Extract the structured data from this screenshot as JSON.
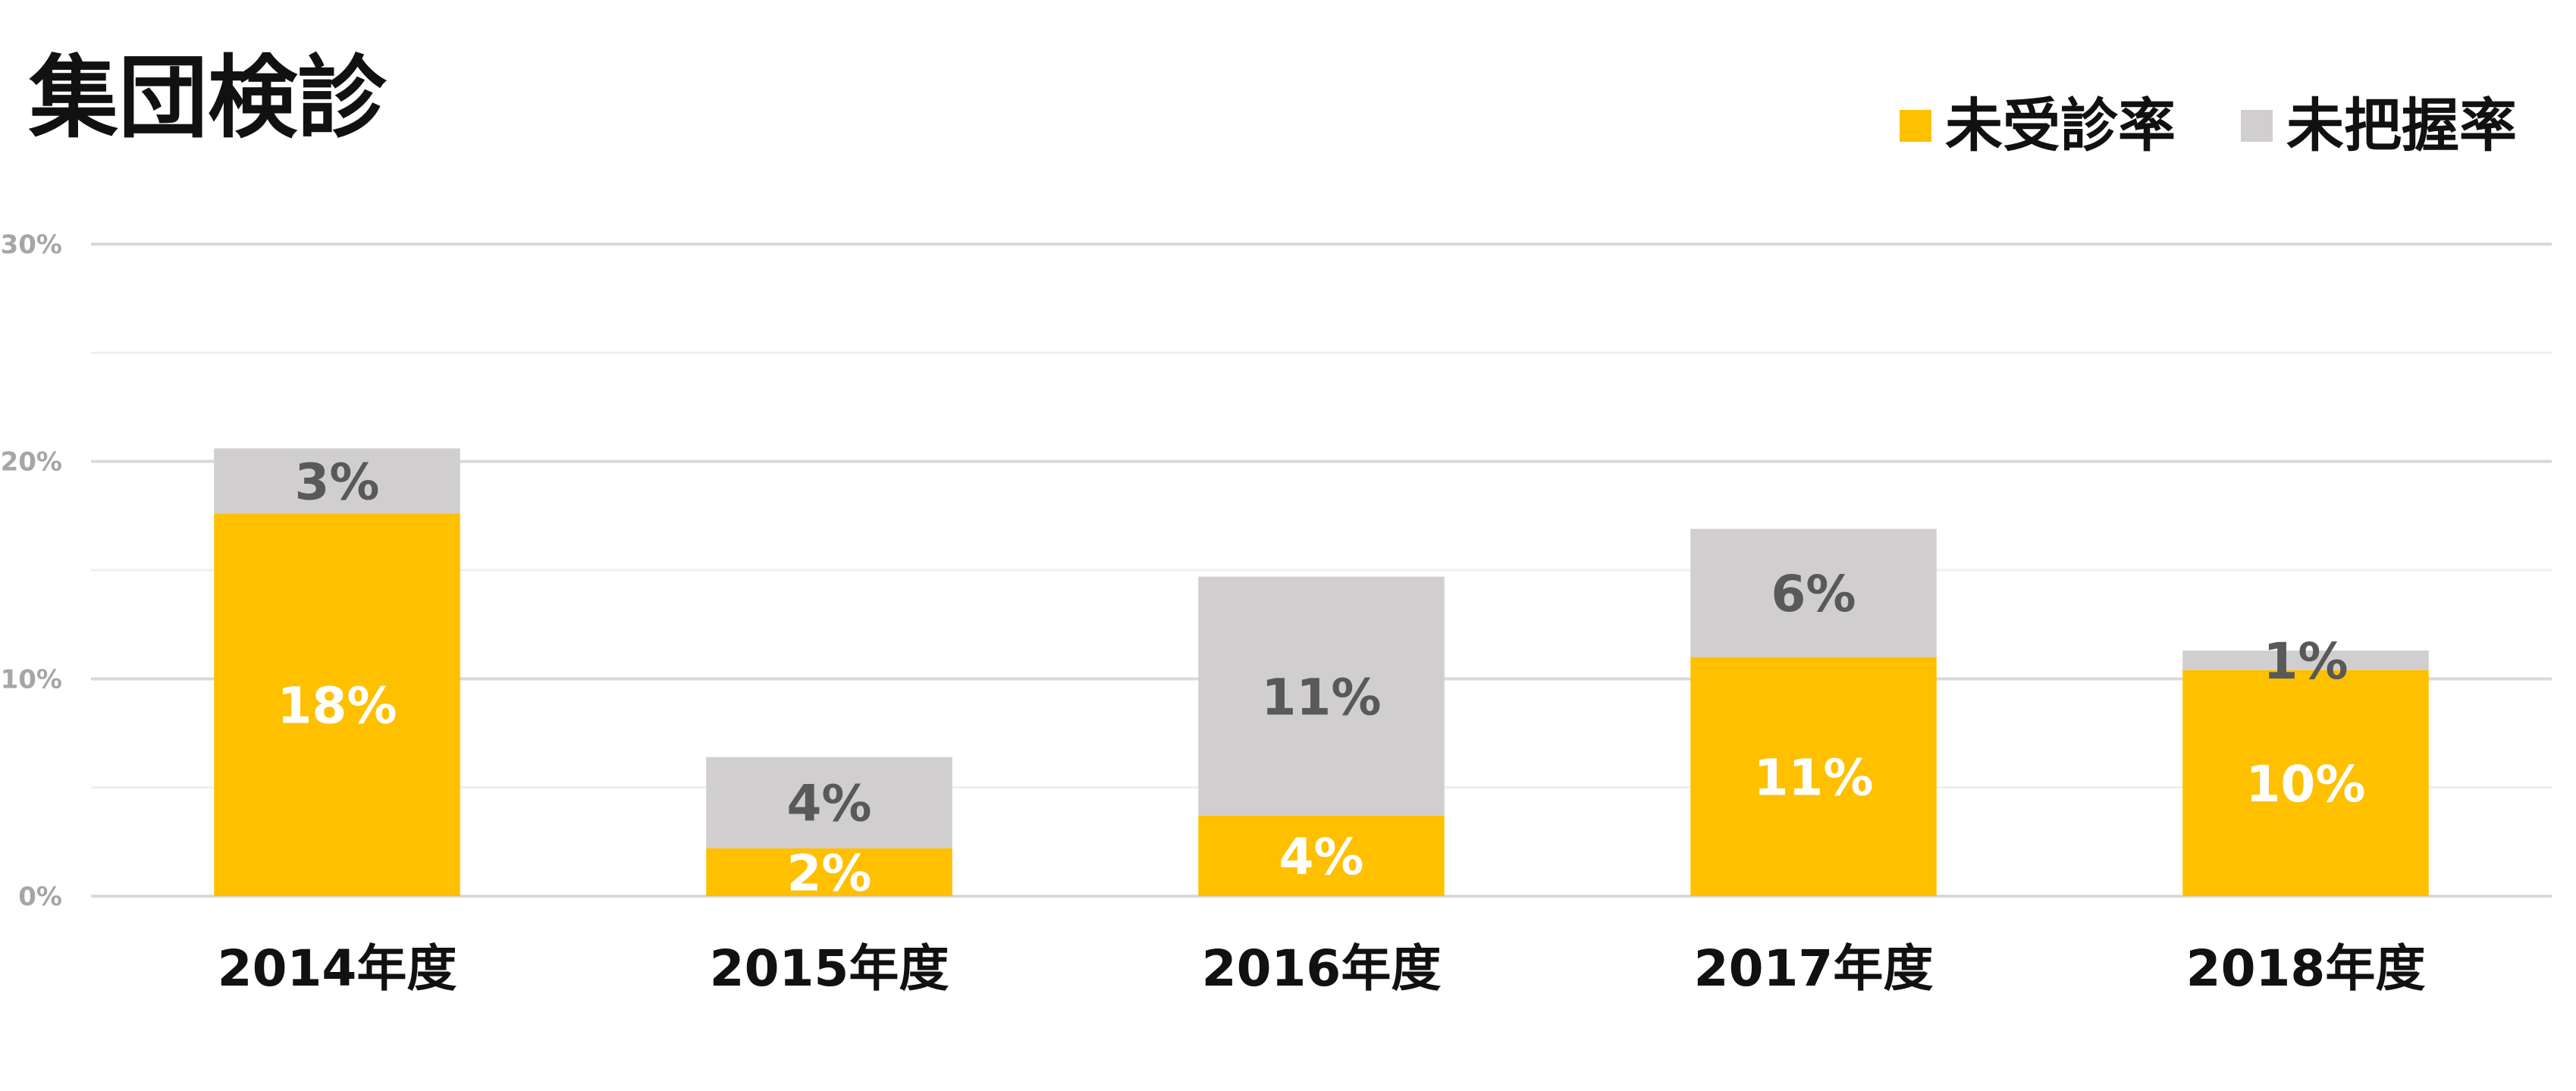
{
  "chart_data": {
    "type": "bar",
    "stacked": true,
    "title": "集団検診",
    "xlabel": "",
    "ylabel": "",
    "categories": [
      "2014年度",
      "2015年度",
      "2016年度",
      "2017年度",
      "2018年度"
    ],
    "series": [
      {
        "name": "未受診率",
        "color": "#FFC000",
        "values": [
          17.6,
          2.2,
          3.7,
          11.0,
          10.4
        ],
        "labels": [
          "18%",
          "2%",
          "4%",
          "11%",
          "10%"
        ],
        "label_color": "#FFFFFF"
      },
      {
        "name": "未把握率",
        "color": "#D0CECE",
        "values": [
          3.0,
          4.2,
          11.0,
          5.9,
          0.9
        ],
        "labels": [
          "3%",
          "4%",
          "11%",
          "6%",
          "1%"
        ],
        "label_color": "#595959"
      }
    ],
    "ylim": [
      0,
      30
    ],
    "yticks": [
      0,
      10,
      20,
      30
    ],
    "ytick_labels": [
      "0%",
      "10%",
      "20%",
      "30%"
    ],
    "grid": true,
    "legend_position": "top-right"
  }
}
